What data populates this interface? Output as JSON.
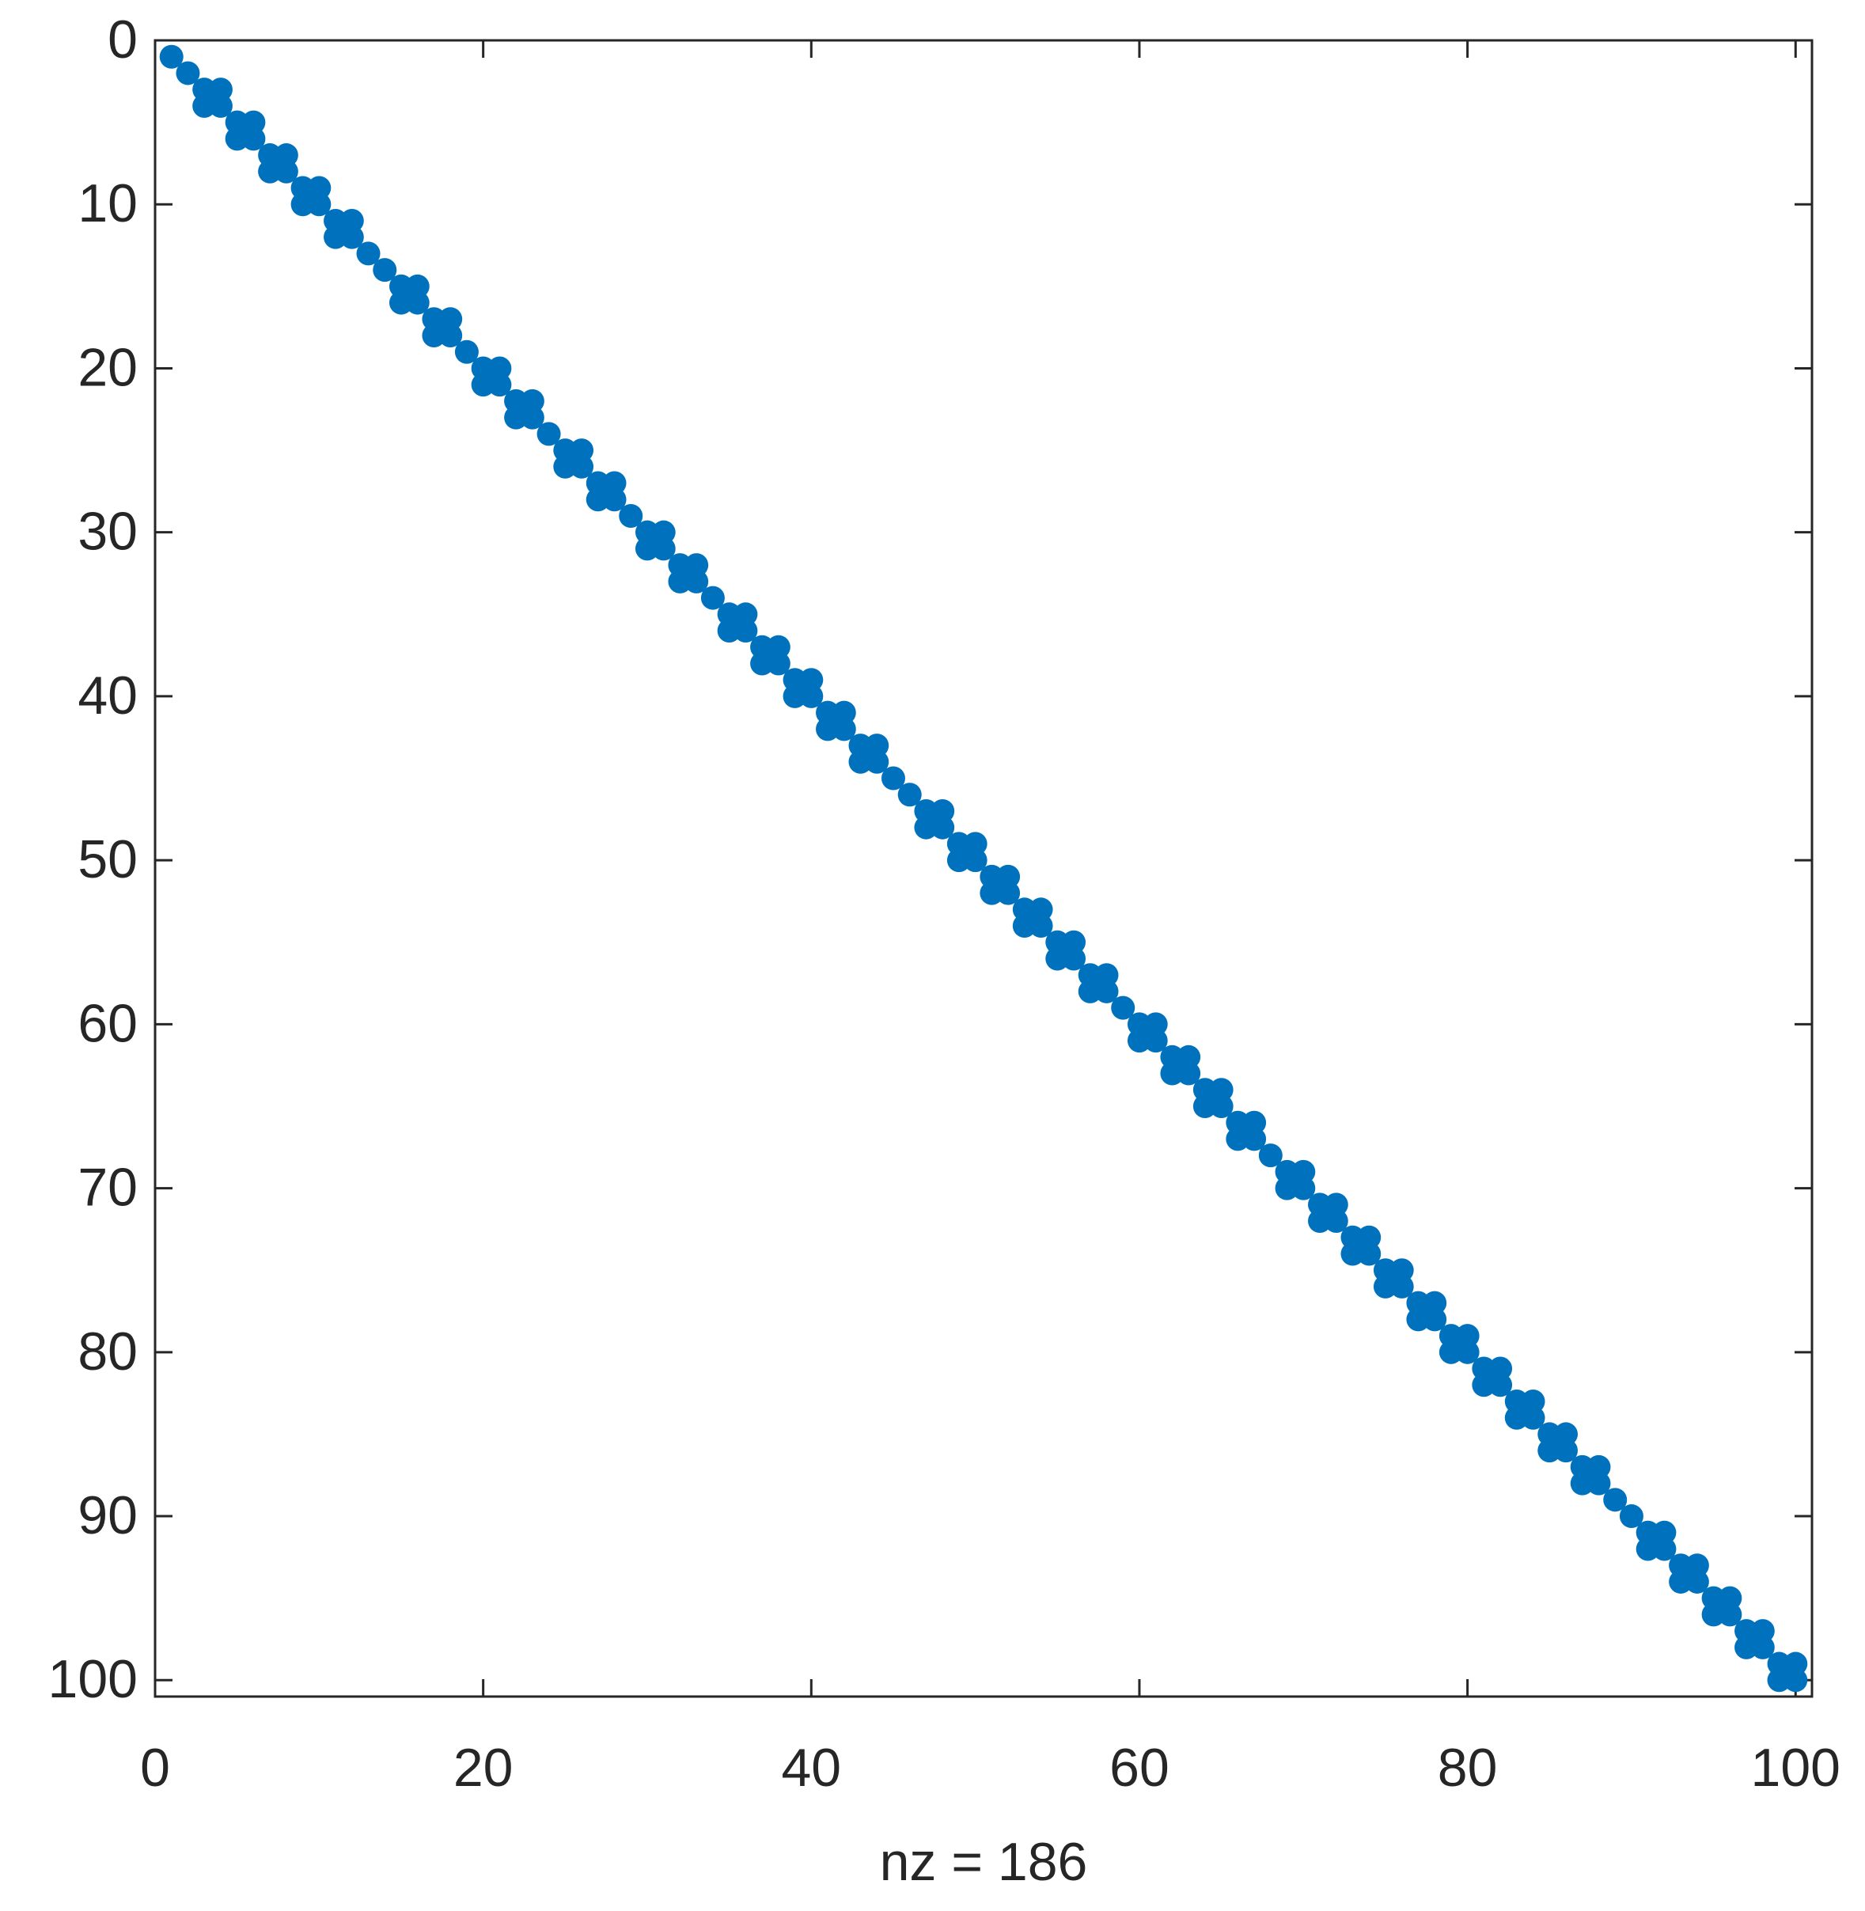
{
  "chart_data": {
    "type": "scatter",
    "xlabel": "nz = 186",
    "color": "#0072bd",
    "y_reversed": true,
    "xlim": [
      0,
      101
    ],
    "ylim": [
      0,
      101
    ],
    "xticks": [
      0,
      20,
      40,
      60,
      80,
      100
    ],
    "yticks": [
      0,
      10,
      20,
      30,
      40,
      50,
      60,
      70,
      80,
      90,
      100
    ],
    "x": [
      1,
      2,
      3,
      3,
      4,
      4,
      5,
      5,
      6,
      6,
      7,
      7,
      8,
      8,
      9,
      9,
      10,
      10,
      11,
      11,
      12,
      12,
      13,
      14,
      15,
      15,
      16,
      16,
      17,
      17,
      18,
      18,
      19,
      20,
      20,
      21,
      21,
      22,
      22,
      23,
      23,
      24,
      25,
      25,
      26,
      26,
      27,
      27,
      28,
      28,
      29,
      30,
      30,
      31,
      31,
      32,
      32,
      33,
      33,
      34,
      35,
      35,
      36,
      36,
      37,
      37,
      38,
      38,
      39,
      39,
      40,
      40,
      41,
      41,
      42,
      42,
      43,
      43,
      44,
      44,
      45,
      46,
      47,
      47,
      48,
      48,
      49,
      49,
      50,
      50,
      51,
      51,
      52,
      52,
      53,
      53,
      54,
      54,
      55,
      55,
      56,
      56,
      57,
      57,
      58,
      58,
      59,
      60,
      60,
      61,
      61,
      62,
      62,
      63,
      63,
      64,
      64,
      65,
      65,
      66,
      66,
      67,
      67,
      68,
      69,
      69,
      70,
      70,
      71,
      71,
      72,
      72,
      73,
      73,
      74,
      74,
      75,
      75,
      76,
      76,
      77,
      77,
      78,
      78,
      79,
      79,
      80,
      80,
      81,
      81,
      82,
      82,
      83,
      83,
      84,
      84,
      85,
      85,
      86,
      86,
      87,
      87,
      88,
      88,
      89,
      90,
      91,
      91,
      92,
      92,
      93,
      93,
      94,
      94,
      95,
      95,
      96,
      96,
      97,
      97,
      98,
      98,
      99,
      99,
      100,
      100
    ],
    "y": [
      1,
      2,
      3,
      4,
      3,
      4,
      5,
      6,
      5,
      6,
      7,
      8,
      7,
      8,
      9,
      10,
      9,
      10,
      11,
      12,
      11,
      12,
      13,
      14,
      15,
      16,
      15,
      16,
      17,
      18,
      17,
      18,
      19,
      20,
      21,
      20,
      21,
      22,
      23,
      22,
      23,
      24,
      25,
      26,
      25,
      26,
      27,
      28,
      27,
      28,
      29,
      30,
      31,
      30,
      31,
      32,
      33,
      32,
      33,
      34,
      35,
      36,
      35,
      36,
      37,
      38,
      37,
      38,
      39,
      40,
      39,
      40,
      41,
      42,
      41,
      42,
      43,
      44,
      43,
      44,
      45,
      46,
      47,
      48,
      47,
      48,
      49,
      50,
      49,
      50,
      51,
      52,
      51,
      52,
      53,
      54,
      53,
      54,
      55,
      56,
      55,
      56,
      57,
      58,
      57,
      58,
      59,
      60,
      61,
      60,
      61,
      62,
      63,
      62,
      63,
      64,
      65,
      64,
      65,
      66,
      67,
      66,
      67,
      68,
      69,
      70,
      69,
      70,
      71,
      72,
      71,
      72,
      73,
      74,
      73,
      74,
      75,
      76,
      75,
      76,
      77,
      78,
      77,
      78,
      79,
      80,
      79,
      80,
      81,
      82,
      81,
      82,
      83,
      84,
      83,
      84,
      85,
      86,
      85,
      86,
      87,
      88,
      87,
      88,
      89,
      90,
      91,
      92,
      91,
      92,
      93,
      94,
      93,
      94,
      95,
      96,
      95,
      96,
      97,
      98,
      97,
      98,
      99,
      100,
      99,
      100
    ]
  }
}
